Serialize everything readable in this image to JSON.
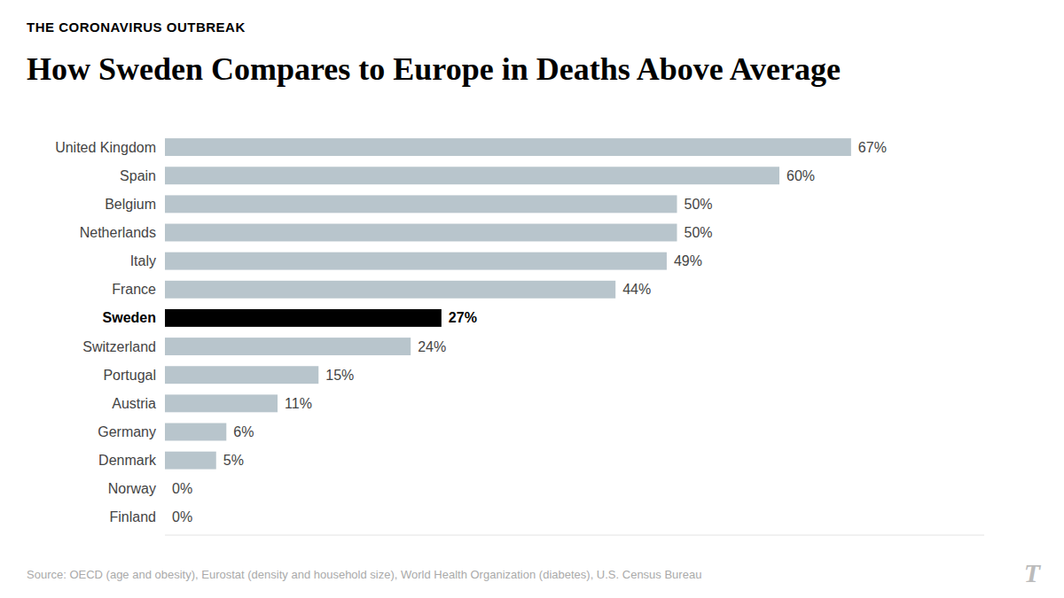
{
  "chart_data": {
    "type": "bar",
    "orientation": "horizontal",
    "title": "How Sweden Compares to Europe in Deaths Above Average",
    "subtitle": "THE CORONAVIRUS OUTBREAK",
    "annotations": [
      "Source: OECD (age and obesity), Eurostat (density and household size), World Health Organization (diabetes), U.S. Census Bureau",
      "T"
    ],
    "categories": [
      "United Kingdom",
      "Spain",
      "Belgium",
      "Netherlands",
      "Italy",
      "France",
      "Sweden",
      "Switzerland",
      "Portugal",
      "Austria",
      "Germany",
      "Denmark",
      "Norway",
      "Finland"
    ],
    "values": [
      67,
      60,
      50,
      50,
      49,
      44,
      27,
      24,
      15,
      11,
      6,
      5,
      0,
      0
    ],
    "value_labels": [
      "67%",
      "60%",
      "50%",
      "50%",
      "49%",
      "44%",
      "27%",
      "24%",
      "15%",
      "11%",
      "6%",
      "5%",
      "0%",
      "0%"
    ],
    "colors": [
      "#b8c5cc",
      "#b8c5cc",
      "#b8c5cc",
      "#b8c5cc",
      "#b8c5cc",
      "#b8c5cc",
      "#000000",
      "#b8c5cc",
      "#b8c5cc",
      "#b8c5cc",
      "#b8c5cc",
      "#b8c5cc",
      "#b8c5cc",
      "#b8c5cc"
    ],
    "xlim": [
      0,
      80
    ],
    "data_labels": true,
    "tick_labels": "y",
    "grid": false
  }
}
